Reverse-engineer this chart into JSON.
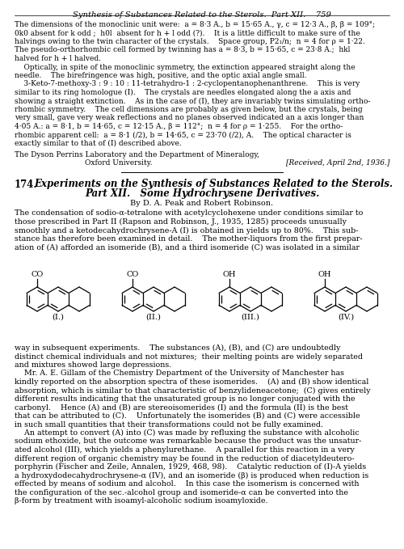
{
  "bg_color": "#ffffff",
  "text_color": "#000000",
  "figsize": [
    5.0,
    6.79
  ],
  "dpi": 100,
  "header": "Synthesis of Substances Related to the Sterols.  Part XII.    759",
  "top_text": [
    "The dimensions of the monoclinic unit were:  a = 8·3 A., b = 15·65 A., γ, c = 12·3 A., β, β = 109°;",
    "0k0 absent for k odd ;  h0l  absent for h + l odd (?).    It is a little difficult to make sure of the",
    "halvings owing to the twin character of the crystals.    Space group, P2₁/n;  n = 4 for ρ = 1·22.",
    "The pseudo-orthorhombic cell formed by twinning has a = 8·3, b = 15·65, c = 23·8 A.;  hkl",
    "halved for h + l halved.",
    "    Optically, in spite of the monoclinic symmetry, the extinction appeared straight along the",
    "needle.    The birefringence was high, positive, and the optic axial angle small.",
    "    3-Keto-7-methoxy-3 : 9 : 10 : 11-tetrahydro-1 : 2-cyclopentanophenanthrene.    This is very",
    "similar to its ring homologue (I).    The crystals are needles elongated along the a axis and",
    "showing a straight extinction.    As in the case of (I), they are invariably twins simulating ortho-",
    "rhombic symmetry.    The cell dimensions are probably as given below, but the crystals, being",
    "very small, gave very weak reflections and no planes observed indicated an a axis longer than",
    "4·05 A.: a = 8·1, b = 14·65, c = 12·15 A., β = 112°;  n = 4 for ρ = 1·255.    For the ortho-",
    "rhombic apparent cell:  a = 8·1 (/2), b = 14·65, c = 23·70 (/2), A.    The optical character is",
    "exactly similar to that of (I) described above."
  ],
  "institution1": "The Dyson Perrins Laboratory and the Department of Mineralogy,",
  "institution2": "Oxford University.",
  "received": "[Received, April 2nd, 1936.]",
  "article_num": "174.",
  "article_title1": "Experiments on the Synthesis of Substances Related to the Sterols.",
  "article_title2": "Part XII.   Some Hydrochrysene Derivatives.",
  "authors": "By D. A. Pеak and Robert Robinson.",
  "body1": [
    "The condensation of sodio-α-tetralone with acetylcyclohexene under conditions similar to",
    "those prescribed in Part II (Rapson and Robinson, J., 1935, 1285) proceeds unusually",
    "smoothly and a ketodecahydrochrysene-A (I) is obtained in yields up to 80%.    This sub-",
    "stance has therefore been examined in detail.    The mother-liquors from the first prepar-",
    "ation of (A) afforded an isomeride (B), and a third isomeride (C) was isolated in a similar"
  ],
  "body2": [
    "way in subsequent experiments.    The substances (A), (B), and (C) are undoubtedly",
    "distinct chemical individuals and not mixtures;  their melting points are widely separated",
    "and mixtures showed large depressions.",
    "    Mr. A. E. Gillam of the Chemistry Department of the University of Manchester has",
    "kindly reported on the absorption spectra of these isomerides.    (A) and (B) show identical",
    "absorption, which is similar to that characteristic of benzylideneacetone;  (C) gives entirely",
    "different results indicating that the unsaturated group is no longer conjugated with the",
    "carbonyl.    Hence (A) and (B) are stereoisomerides (I) and the formula (II) is the best",
    "that can be attributed to (C).    Unfortunately the isomerides (B) and (C) were accessible",
    "in such small quantities that their transformations could not be fully examined.",
    "    An attempt to convert (A) into (C) was made by refluxing the substance with alcoholic",
    "sodium ethoxide, but the outcome was remarkable because the product was the unsatur-",
    "ated alcohol (III), which yields a phenylurethane.    A parallel for this reaction in a very",
    "different region of organic chemistry may be found in the reduction of diacetyldeutero-",
    "porphyrin (Fischer and Zeile, Annalen, 1929, 468, 98).    Catalytic reduction of (I)-A yields",
    "a hydroxydodecahydrochrysene-α (IV), and an isomeride (β) is produced when reduction is",
    "effected by means of sodium and alcohol.    In this case the isomerism is concerned with",
    "the configuration of the sec.-alcohol group and isomeride-α can be converted into the",
    "β-form by treatment with isoamyl-alcoholic sodium isoamyloxide."
  ],
  "mol_labels": [
    "(I.)",
    "(II.)",
    "(III.)",
    "(IV.)"
  ],
  "mol_types": [
    "keto",
    "keto",
    "oh",
    "oh"
  ]
}
